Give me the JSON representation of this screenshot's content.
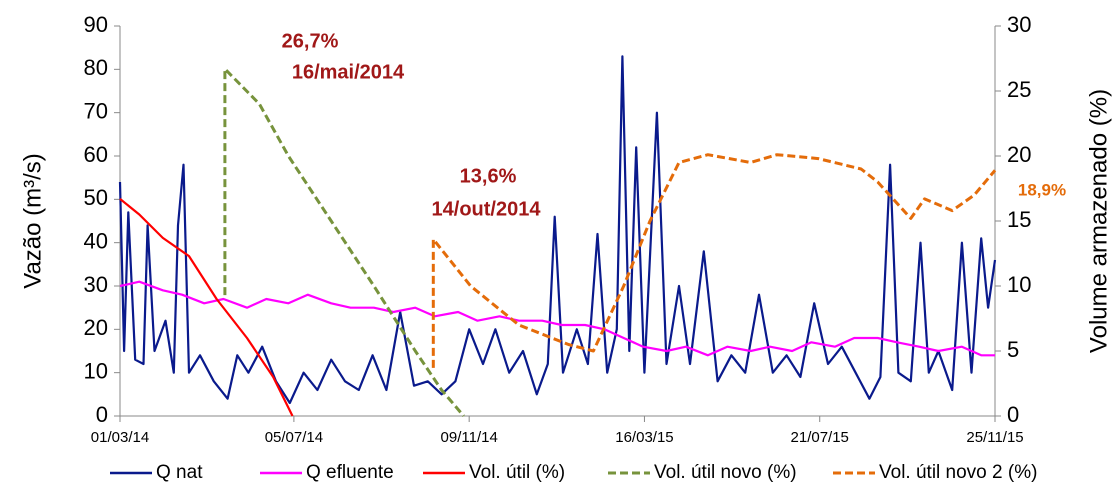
{
  "chart_data": {
    "type": "line",
    "ylabel": "Vazão (m³/s)",
    "y2label": "Volume armazenado (%)",
    "xlim": [
      "2014-03-01",
      "2015-11-25"
    ],
    "xticks": [
      {
        "value": "2014-03-01",
        "label": "01/03/14"
      },
      {
        "value": "2014-07-05",
        "label": "05/07/14"
      },
      {
        "value": "2014-11-09",
        "label": "09/11/14"
      },
      {
        "value": "2015-03-16",
        "label": "16/03/15"
      },
      {
        "value": "2015-07-21",
        "label": "21/07/15"
      },
      {
        "value": "2015-11-25",
        "label": "25/11/15"
      }
    ],
    "ylim": [
      0,
      90
    ],
    "yticks": [
      0,
      10,
      20,
      30,
      40,
      50,
      60,
      70,
      80,
      90
    ],
    "y2lim": [
      0,
      30
    ],
    "y2ticks": [
      0,
      5,
      10,
      15,
      20,
      25,
      30
    ],
    "legend": "bottom",
    "series": [
      {
        "name": "Q nat",
        "color": "#0a1a8c",
        "dash": false,
        "x": [
          "2014-03-01",
          "2014-03-04",
          "2014-03-07",
          "2014-03-12",
          "2014-03-18",
          "2014-03-21",
          "2014-03-26",
          "2014-04-03",
          "2014-04-09",
          "2014-04-12",
          "2014-04-16",
          "2014-04-20",
          "2014-04-28",
          "2014-05-08",
          "2014-05-18",
          "2014-05-25",
          "2014-06-02",
          "2014-06-12",
          "2014-06-22",
          "2014-07-02",
          "2014-07-12",
          "2014-07-22",
          "2014-08-01",
          "2014-08-11",
          "2014-08-21",
          "2014-08-31",
          "2014-09-10",
          "2014-09-20",
          "2014-09-30",
          "2014-10-10",
          "2014-10-20",
          "2014-10-30",
          "2014-11-09",
          "2014-11-19",
          "2014-11-28",
          "2014-12-08",
          "2014-12-18",
          "2014-12-28",
          "2015-01-05",
          "2015-01-10",
          "2015-01-16",
          "2015-01-26",
          "2015-02-03",
          "2015-02-10",
          "2015-02-17",
          "2015-02-24",
          "2015-02-28",
          "2015-03-05",
          "2015-03-10",
          "2015-03-16",
          "2015-03-25",
          "2015-04-01",
          "2015-04-10",
          "2015-04-18",
          "2015-04-28",
          "2015-05-08",
          "2015-05-18",
          "2015-05-28",
          "2015-06-07",
          "2015-06-17",
          "2015-06-27",
          "2015-07-07",
          "2015-07-17",
          "2015-07-27",
          "2015-08-06",
          "2015-08-16",
          "2015-08-26",
          "2015-09-03",
          "2015-09-10",
          "2015-09-16",
          "2015-09-25",
          "2015-10-02",
          "2015-10-08",
          "2015-10-15",
          "2015-10-25",
          "2015-11-01",
          "2015-11-08",
          "2015-11-15",
          "2015-11-20",
          "2015-11-25"
        ],
        "values": [
          54,
          15,
          47,
          13,
          12,
          44,
          15,
          22,
          10,
          44,
          58,
          10,
          14,
          8,
          4,
          14,
          10,
          16,
          8,
          3,
          10,
          6,
          13,
          8,
          6,
          14,
          6,
          24,
          7,
          8,
          5,
          8,
          20,
          12,
          20,
          10,
          15,
          5,
          12,
          46,
          10,
          20,
          12,
          42,
          10,
          20,
          83,
          15,
          62,
          10,
          70,
          12,
          30,
          12,
          38,
          8,
          14,
          10,
          28,
          10,
          14,
          9,
          26,
          12,
          16,
          10,
          4,
          9,
          58,
          10,
          8,
          40,
          10,
          15,
          6,
          40,
          10,
          41,
          25,
          36
        ]
      },
      {
        "name": "Q efluente",
        "color": "#ff00ff",
        "dash": false,
        "x": [
          "2014-03-01",
          "2014-03-15",
          "2014-04-01",
          "2014-04-15",
          "2014-05-01",
          "2014-05-15",
          "2014-06-01",
          "2014-06-15",
          "2014-07-01",
          "2014-07-15",
          "2014-08-01",
          "2014-08-15",
          "2014-09-01",
          "2014-09-15",
          "2014-10-01",
          "2014-10-15",
          "2014-11-01",
          "2014-11-15",
          "2014-12-01",
          "2014-12-15",
          "2015-01-01",
          "2015-01-15",
          "2015-02-01",
          "2015-02-15",
          "2015-03-01",
          "2015-03-15",
          "2015-04-01",
          "2015-04-15",
          "2015-05-01",
          "2015-05-15",
          "2015-06-01",
          "2015-06-15",
          "2015-07-01",
          "2015-07-15",
          "2015-08-01",
          "2015-08-15",
          "2015-09-01",
          "2015-09-15",
          "2015-10-01",
          "2015-10-15",
          "2015-11-01",
          "2015-11-15",
          "2015-11-25"
        ],
        "values": [
          30,
          31,
          29,
          28,
          26,
          27,
          25,
          27,
          26,
          28,
          26,
          25,
          25,
          24,
          25,
          23,
          24,
          22,
          23,
          22,
          22,
          21,
          21,
          20,
          18,
          16,
          15,
          16,
          14,
          16,
          15,
          16,
          15,
          17,
          16,
          18,
          18,
          17,
          16,
          15,
          16,
          14,
          14
        ]
      },
      {
        "name": "Vol. útil (%)",
        "color": "#ff0000",
        "dash": false,
        "axis": "y2",
        "x": [
          "2014-03-01",
          "2014-03-15",
          "2014-04-01",
          "2014-04-20",
          "2014-05-10",
          "2014-06-01",
          "2014-06-20",
          "2014-07-04"
        ],
        "values": [
          16.7,
          15.5,
          13.7,
          12.3,
          9,
          6,
          3,
          0
        ]
      },
      {
        "name": "Vol. útil novo (%)",
        "color": "#77933c",
        "dash": true,
        "axis": "y2",
        "x": [
          "2014-05-16",
          "2014-05-16",
          "2014-06-10",
          "2014-07-01",
          "2014-08-01",
          "2014-09-01",
          "2014-10-01",
          "2014-10-20",
          "2014-11-05"
        ],
        "values": [
          9.3,
          26.7,
          24,
          20,
          15,
          10,
          5,
          2,
          0
        ]
      },
      {
        "name": "Vol. útil novo 2 (%)",
        "color": "#e46c0a",
        "dash": true,
        "axis": "y2",
        "x": [
          "2014-10-14",
          "2014-10-14",
          "2014-11-10",
          "2014-12-15",
          "2015-01-20",
          "2015-02-07",
          "2015-03-01",
          "2015-03-20",
          "2015-04-10",
          "2015-05-01",
          "2015-06-01",
          "2015-06-20",
          "2015-07-20",
          "2015-08-20",
          "2015-09-01",
          "2015-09-25",
          "2015-10-05",
          "2015-10-25",
          "2015-11-10",
          "2015-11-25"
        ],
        "values": [
          3.7,
          13.6,
          10,
          7,
          5.5,
          5,
          10,
          15,
          19.5,
          20.1,
          19.5,
          20.1,
          19.8,
          19,
          18,
          15.2,
          16.7,
          15.8,
          17,
          18.9
        ]
      }
    ],
    "annotations": [
      "26,7%",
      "16/mai/2014",
      "13,6%",
      "14/out/2014",
      "18,9%"
    ]
  }
}
